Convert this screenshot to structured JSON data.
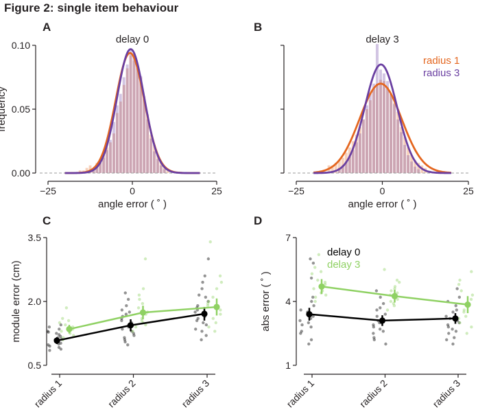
{
  "figure_title": "Figure 2: single item behaviour",
  "colors": {
    "radius1": "#e4661f",
    "radius3": "#6a3fa1",
    "delay0": "#000000",
    "delay3": "#8fd163",
    "axis": "#231f20",
    "zero_line": "#999999"
  },
  "chart_data": [
    {
      "panel": "A",
      "type": "bar",
      "title": "delay 0",
      "xlabel": "angle error ( ˚ )",
      "ylabel": "frequency",
      "xlim": [
        -25,
        25
      ],
      "ylim": [
        0,
        0.1
      ],
      "xticks": [
        "−25",
        "0",
        "25"
      ],
      "yticks": [
        "0.00",
        "0.05",
        "0.10"
      ],
      "zero_line": "dashed",
      "histograms": [
        {
          "name": "radius 1",
          "color": "#e4661f",
          "bins": [
            [
              -16,
              0.002
            ],
            [
              -15,
              0.002
            ],
            [
              -14,
              0.004
            ],
            [
              -13,
              0.006
            ],
            [
              -12,
              0.004
            ],
            [
              -11,
              0.008
            ],
            [
              -10,
              0.011
            ],
            [
              -9,
              0.014
            ],
            [
              -8,
              0.02
            ],
            [
              -7,
              0.024
            ],
            [
              -6,
              0.031
            ],
            [
              -5,
              0.047
            ],
            [
              -4,
              0.056
            ],
            [
              -3,
              0.069
            ],
            [
              -2,
              0.082
            ],
            [
              -1,
              0.092
            ],
            [
              0,
              0.088
            ],
            [
              1,
              0.084
            ],
            [
              2,
              0.075
            ],
            [
              3,
              0.06
            ],
            [
              4,
              0.046
            ],
            [
              5,
              0.03
            ],
            [
              6,
              0.022
            ],
            [
              7,
              0.014
            ],
            [
              8,
              0.009
            ],
            [
              9,
              0.005
            ],
            [
              10,
              0.003
            ]
          ]
        },
        {
          "name": "radius 3",
          "color": "#6a3fa1",
          "bins": [
            [
              -12,
              0.002
            ],
            [
              -11,
              0.005
            ],
            [
              -10,
              0.008
            ],
            [
              -9,
              0.012
            ],
            [
              -8,
              0.018
            ],
            [
              -7,
              0.026
            ],
            [
              -6,
              0.04
            ],
            [
              -5,
              0.053
            ],
            [
              -4,
              0.062
            ],
            [
              -3,
              0.075
            ],
            [
              -2,
              0.085
            ],
            [
              -1,
              0.097
            ],
            [
              0,
              0.094
            ],
            [
              1,
              0.082
            ],
            [
              2,
              0.076
            ],
            [
              3,
              0.058
            ],
            [
              4,
              0.042
            ],
            [
              5,
              0.027
            ],
            [
              6,
              0.017
            ],
            [
              7,
              0.011
            ],
            [
              8,
              0.006
            ],
            [
              9,
              0.003
            ]
          ]
        }
      ],
      "fits": [
        {
          "name": "radius 1",
          "color": "#e4661f",
          "mean": -0.7,
          "sd": 4.25,
          "peak": 0.094
        },
        {
          "name": "radius 3",
          "color": "#6a3fa1",
          "mean": -0.5,
          "sd": 4.05,
          "peak": 0.097
        }
      ]
    },
    {
      "panel": "B",
      "type": "bar",
      "title": "delay 3",
      "xlabel": "angle error ( ˚ )",
      "ylabel": "",
      "xlim": [
        -25,
        25
      ],
      "ylim": [
        0,
        0.1
      ],
      "xticks": [
        "−25",
        "0",
        "25"
      ],
      "yticks": [
        "",
        "",
        ""
      ],
      "zero_line": "dashed",
      "legend": {
        "placement": "top-right",
        "entries": [
          "radius 1",
          "radius 3"
        ]
      },
      "histograms": [
        {
          "name": "radius 1",
          "color": "#e4661f",
          "bins": [
            [
              -16,
              0.006
            ],
            [
              -15,
              0.006
            ],
            [
              -14,
              0.008
            ],
            [
              -13,
              0.01
            ],
            [
              -12,
              0.012
            ],
            [
              -11,
              0.016
            ],
            [
              -10,
              0.02
            ],
            [
              -9,
              0.025
            ],
            [
              -8,
              0.03
            ],
            [
              -7,
              0.036
            ],
            [
              -6,
              0.042
            ],
            [
              -5,
              0.05
            ],
            [
              -4,
              0.057
            ],
            [
              -3,
              0.066
            ],
            [
              -2,
              0.07
            ],
            [
              -1,
              0.073
            ],
            [
              0,
              0.072
            ],
            [
              1,
              0.067
            ],
            [
              2,
              0.062
            ],
            [
              3,
              0.055
            ],
            [
              4,
              0.048
            ],
            [
              5,
              0.036
            ],
            [
              6,
              0.028
            ],
            [
              7,
              0.02
            ],
            [
              8,
              0.014
            ],
            [
              9,
              0.01
            ],
            [
              10,
              0.008
            ],
            [
              11,
              0.006
            ],
            [
              12,
              0.004
            ]
          ]
        },
        {
          "name": "radius 3",
          "color": "#6a3fa1",
          "bins": [
            [
              -13,
              0.004
            ],
            [
              -12,
              0.006
            ],
            [
              -11,
              0.009
            ],
            [
              -10,
              0.013
            ],
            [
              -9,
              0.018
            ],
            [
              -8,
              0.024
            ],
            [
              -7,
              0.031
            ],
            [
              -6,
              0.042
            ],
            [
              -5,
              0.053
            ],
            [
              -4,
              0.063
            ],
            [
              -3,
              0.07
            ],
            [
              -2,
              0.101
            ],
            [
              -1,
              0.081
            ],
            [
              0,
              0.078
            ],
            [
              1,
              0.072
            ],
            [
              2,
              0.062
            ],
            [
              3,
              0.054
            ],
            [
              4,
              0.042
            ],
            [
              5,
              0.032
            ],
            [
              6,
              0.022
            ],
            [
              7,
              0.014
            ],
            [
              8,
              0.009
            ],
            [
              9,
              0.005
            ],
            [
              10,
              0.003
            ]
          ]
        }
      ],
      "fits": [
        {
          "name": "radius 1",
          "color": "#e4661f",
          "mean": -0.5,
          "sd": 6.1,
          "peak": 0.07
        },
        {
          "name": "radius 3",
          "color": "#6a3fa1",
          "mean": -0.4,
          "sd": 4.7,
          "peak": 0.085
        }
      ]
    },
    {
      "panel": "C",
      "type": "scatter",
      "xlabel": "",
      "ylabel": "module error (cm)",
      "categories": [
        "radius 1",
        "radius 2",
        "radius 3"
      ],
      "ylim": [
        0.5,
        3.5
      ],
      "yticks": [
        "0.5",
        "2.0",
        "3.5"
      ],
      "series": [
        {
          "name": "",
          "color": "#000000",
          "means": [
            1.08,
            1.44,
            1.71
          ],
          "errors": [
            0.08,
            0.14,
            0.16
          ],
          "points": [
            [
              0.92,
              0.98,
              1.0,
              1.05,
              1.08,
              1.1,
              1.12,
              1.18,
              1.22,
              0.88,
              1.15,
              1.25,
              0.95,
              1.02,
              1.28,
              1.35,
              1.4,
              1.3,
              1.45,
              0.85
            ],
            [
              1.2,
              1.35,
              1.5,
              1.6,
              1.75,
              1.9,
              2.2,
              1.05,
              1.3,
              1.45,
              1.1,
              1.55,
              1.8,
              1.25,
              1.65,
              1.4,
              0.98,
              2.05,
              1.15,
              1.7
            ],
            [
              1.3,
              1.5,
              1.65,
              1.8,
              2.0,
              2.15,
              2.3,
              2.6,
              3.0,
              1.2,
              1.45,
              1.9,
              1.75,
              1.55,
              2.1,
              1.35,
              1.85,
              1.1,
              2.45,
              1.6
            ]
          ]
        },
        {
          "name": "",
          "color": "#8fd163",
          "means": [
            1.35,
            1.74,
            1.87
          ],
          "errors": [
            0.1,
            0.16,
            0.2
          ],
          "points": [
            [
              1.1,
              1.2,
              1.3,
              1.4,
              1.5,
              1.6,
              1.85,
              1.25,
              1.35,
              1.45,
              1.15,
              1.55
            ],
            [
              1.4,
              1.55,
              1.7,
              1.85,
              2.05,
              2.3,
              3.0,
              1.3,
              1.6,
              1.95,
              1.5,
              1.75,
              2.15,
              1.45
            ],
            [
              1.5,
              1.7,
              1.9,
              2.1,
              2.3,
              2.6,
              3.4,
              1.4,
              1.8,
              2.0,
              1.6,
              2.45,
              1.3,
              1.95
            ]
          ]
        }
      ]
    },
    {
      "panel": "D",
      "type": "scatter",
      "xlabel": "",
      "ylabel": "abs error ( ˚ )",
      "categories": [
        "radius 1",
        "radius 2",
        "radius 3"
      ],
      "ylim": [
        1,
        7
      ],
      "yticks": [
        "1",
        "4",
        "7"
      ],
      "legend": {
        "placement": "top-left",
        "entries": [
          "delay 0",
          "delay 3"
        ]
      },
      "series": [
        {
          "name": "delay 0",
          "color": "#000000",
          "means": [
            3.4,
            3.1,
            3.2
          ],
          "errors": [
            0.3,
            0.25,
            0.25
          ],
          "points": [
            [
              2.2,
              2.5,
              2.8,
              3.0,
              3.2,
              3.5,
              3.8,
              4.2,
              5.1,
              5.8,
              6.0,
              2.0,
              2.9,
              3.3,
              3.6,
              4.0,
              2.6,
              3.1
            ],
            [
              2.0,
              2.3,
              2.6,
              2.9,
              3.0,
              3.1,
              3.3,
              3.6,
              3.9,
              4.2,
              4.5,
              2.5,
              2.8,
              3.4,
              2.2,
              3.7,
              3.0,
              2.7
            ],
            [
              2.0,
              2.3,
              2.6,
              2.8,
              3.0,
              3.2,
              3.5,
              3.8,
              4.2,
              4.6,
              3.1,
              2.5,
              3.3,
              2.9,
              3.6,
              2.2,
              4.0,
              2.7
            ]
          ]
        },
        {
          "name": "delay 3",
          "color": "#8fd163",
          "means": [
            4.7,
            4.25,
            3.85
          ],
          "errors": [
            0.35,
            0.3,
            0.4
          ],
          "points": [
            [
              4.0,
              4.3,
              4.6,
              4.9,
              5.3,
              5.6,
              6.2,
              4.5,
              4.8,
              5.0,
              4.2,
              5.4,
              4.4,
              4.7
            ],
            [
              3.6,
              3.9,
              4.1,
              4.3,
              4.5,
              4.7,
              5.0,
              5.5,
              4.2,
              3.8,
              4.6,
              4.9,
              4.0,
              4.4
            ],
            [
              2.5,
              2.8,
              3.2,
              3.5,
              3.8,
              4.1,
              4.5,
              5.0,
              5.4,
              3.0,
              3.6,
              4.3,
              3.3,
              4.8
            ]
          ]
        }
      ]
    }
  ]
}
